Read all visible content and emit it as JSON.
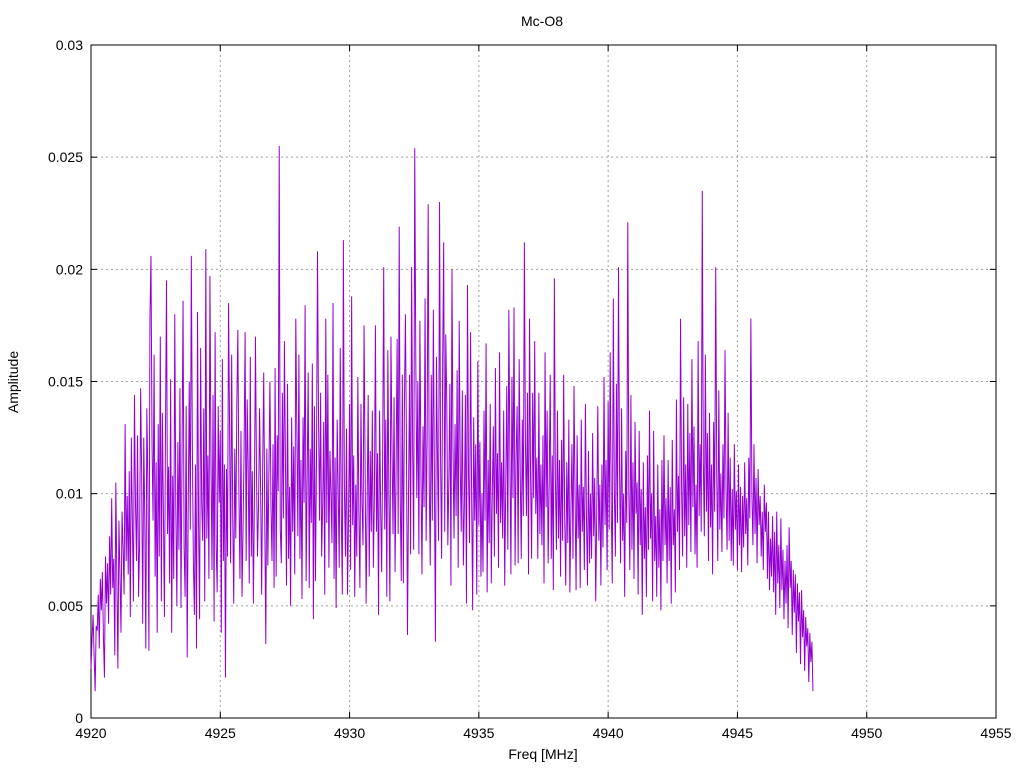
{
  "chart_data": {
    "type": "line",
    "title": "Mc-O8",
    "xlabel": "Freq [MHz]",
    "ylabel": "Amplitude",
    "xlim": [
      4920,
      4955
    ],
    "ylim": [
      0,
      0.03
    ],
    "x_ticks": [
      4920,
      4925,
      4930,
      4935,
      4940,
      4945,
      4950,
      4955
    ],
    "x_tick_labels": [
      "4920",
      "4925",
      "4930",
      "4935",
      "4940",
      "4945",
      "4950",
      "4955"
    ],
    "y_ticks": [
      0,
      0.005,
      0.01,
      0.015,
      0.02,
      0.025,
      0.03
    ],
    "y_tick_labels": [
      "0",
      "0.005",
      "0.01",
      "0.015",
      "0.02",
      "0.025",
      "0.03"
    ],
    "grid": true,
    "legend": "none",
    "series_color": "#9400d3",
    "x_start": 4920,
    "x_step": 0.04,
    "values": [
      0.0022,
      0.0035,
      0.0046,
      0.0028,
      0.0012,
      0.0041,
      0.0039,
      0.0055,
      0.0031,
      0.0062,
      0.0048,
      0.0065,
      0.0036,
      0.0018,
      0.0072,
      0.0051,
      0.0069,
      0.0042,
      0.0081,
      0.0055,
      0.0098,
      0.0058,
      0.0071,
      0.0028,
      0.0105,
      0.0062,
      0.0022,
      0.0088,
      0.0064,
      0.0038,
      0.0092,
      0.0076,
      0.0055,
      0.0131,
      0.007,
      0.0099,
      0.0064,
      0.011,
      0.0045,
      0.0125,
      0.0088,
      0.0052,
      0.0144,
      0.0096,
      0.007,
      0.0126,
      0.0054,
      0.0078,
      0.0147,
      0.0108,
      0.0042,
      0.0125,
      0.0089,
      0.0031,
      0.0138,
      0.0105,
      0.003,
      0.0178,
      0.0206,
      0.0122,
      0.0088,
      0.0162,
      0.0063,
      0.0114,
      0.0038,
      0.0131,
      0.0072,
      0.017,
      0.0052,
      0.0136,
      0.0091,
      0.0045,
      0.0127,
      0.0195,
      0.0082,
      0.0112,
      0.006,
      0.0151,
      0.0038,
      0.0108,
      0.0062,
      0.018,
      0.0094,
      0.005,
      0.0123,
      0.0075,
      0.0147,
      0.0049,
      0.0116,
      0.0186,
      0.0076,
      0.0054,
      0.0139,
      0.0027,
      0.0094,
      0.015,
      0.0084,
      0.0206,
      0.0121,
      0.0069,
      0.0046,
      0.0113,
      0.0031,
      0.0181,
      0.0087,
      0.0044,
      0.0165,
      0.0096,
      0.0079,
      0.0138,
      0.0052,
      0.0209,
      0.008,
      0.0117,
      0.0062,
      0.0197,
      0.0114,
      0.0066,
      0.0144,
      0.0043,
      0.0172,
      0.0077,
      0.0056,
      0.0139,
      0.0096,
      0.0128,
      0.0038,
      0.016,
      0.007,
      0.0113,
      0.0018,
      0.0111,
      0.0072,
      0.0185,
      0.0129,
      0.0069,
      0.0162,
      0.0091,
      0.0051,
      0.012,
      0.008,
      0.014,
      0.0173,
      0.0101,
      0.0062,
      0.0128,
      0.0054,
      0.0084,
      0.0119,
      0.0172,
      0.007,
      0.0142,
      0.0111,
      0.006,
      0.0161,
      0.0072,
      0.011,
      0.0051,
      0.0099,
      0.017,
      0.011,
      0.0072,
      0.0095,
      0.0138,
      0.0101,
      0.0055,
      0.0112,
      0.0154,
      0.0089,
      0.0033,
      0.012,
      0.0068,
      0.011,
      0.015,
      0.0094,
      0.007,
      0.0122,
      0.0058,
      0.0156,
      0.0063,
      0.0126,
      0.0101,
      0.0255,
      0.0084,
      0.0069,
      0.0145,
      0.0089,
      0.0168,
      0.0114,
      0.0059,
      0.0149,
      0.0071,
      0.0103,
      0.005,
      0.0134,
      0.0083,
      0.0121,
      0.0064,
      0.0178,
      0.013,
      0.0081,
      0.0162,
      0.0071,
      0.0115,
      0.0053,
      0.0134,
      0.0096,
      0.0184,
      0.0061,
      0.0108,
      0.0154,
      0.0058,
      0.012,
      0.0087,
      0.0158,
      0.0044,
      0.0139,
      0.0061,
      0.0114,
      0.0208,
      0.0133,
      0.0088,
      0.0145,
      0.0072,
      0.0095,
      0.0132,
      0.0055,
      0.0178,
      0.0087,
      0.0153,
      0.0067,
      0.0119,
      0.01,
      0.0078,
      0.0185,
      0.0062,
      0.0116,
      0.0049,
      0.0133,
      0.0101,
      0.0067,
      0.0165,
      0.0092,
      0.0055,
      0.0213,
      0.0102,
      0.0072,
      0.0129,
      0.0055,
      0.009,
      0.014,
      0.0066,
      0.0188,
      0.0086,
      0.0117,
      0.0054,
      0.0104,
      0.0072,
      0.0152,
      0.0091,
      0.0058,
      0.014,
      0.0096,
      0.0077,
      0.0175,
      0.0113,
      0.0051,
      0.0095,
      0.0144,
      0.0063,
      0.0119,
      0.0083,
      0.0137,
      0.0067,
      0.0099,
      0.0175,
      0.0083,
      0.0118,
      0.0046,
      0.0137,
      0.0095,
      0.0065,
      0.0118,
      0.0201,
      0.0084,
      0.0133,
      0.0054,
      0.0164,
      0.01,
      0.0052,
      0.017,
      0.0121,
      0.0082,
      0.0143,
      0.0065,
      0.0112,
      0.0169,
      0.0082,
      0.0219,
      0.0097,
      0.0061,
      0.0153,
      0.006,
      0.0139,
      0.018,
      0.0122,
      0.0037,
      0.01,
      0.0153,
      0.0073,
      0.0201,
      0.0119,
      0.0075,
      0.0254,
      0.0162,
      0.0098,
      0.015,
      0.0073,
      0.0177,
      0.011,
      0.0064,
      0.013,
      0.0094,
      0.0187,
      0.0079,
      0.0126,
      0.0229,
      0.0106,
      0.0068,
      0.0153,
      0.0088,
      0.0182,
      0.0108,
      0.0034,
      0.0161,
      0.0116,
      0.0079,
      0.023,
      0.0114,
      0.0071,
      0.0158,
      0.0212,
      0.0083,
      0.0171,
      0.014,
      0.0077,
      0.0106,
      0.0149,
      0.0059,
      0.02,
      0.0121,
      0.008,
      0.0131,
      0.009,
      0.0155,
      0.0067,
      0.0177,
      0.0112,
      0.0083,
      0.0146,
      0.0068,
      0.0095,
      0.0144,
      0.0051,
      0.0193,
      0.0109,
      0.0078,
      0.0172,
      0.01,
      0.0048,
      0.0134,
      0.0088,
      0.0122,
      0.0055,
      0.0159,
      0.0086,
      0.0123,
      0.0063,
      0.01,
      0.0065,
      0.0137,
      0.0088,
      0.0167,
      0.0056,
      0.0115,
      0.0078,
      0.014,
      0.006,
      0.0101,
      0.013,
      0.0072,
      0.0156,
      0.0091,
      0.0118,
      0.0067,
      0.0163,
      0.0087,
      0.0114,
      0.008,
      0.0137,
      0.0059,
      0.0104,
      0.0148,
      0.0075,
      0.0182,
      0.0116,
      0.0064,
      0.0152,
      0.0098,
      0.0183,
      0.0068,
      0.0116,
      0.0139,
      0.0069,
      0.016,
      0.0109,
      0.0071,
      0.0133,
      0.009,
      0.0212,
      0.0124,
      0.009,
      0.0145,
      0.0064,
      0.0178,
      0.0108,
      0.0071,
      0.0145,
      0.0098,
      0.0168,
      0.0091,
      0.0116,
      0.0071,
      0.0145,
      0.0082,
      0.0113,
      0.0077,
      0.0126,
      0.006,
      0.0163,
      0.0094,
      0.0137,
      0.0069,
      0.0105,
      0.0153,
      0.0071,
      0.0117,
      0.0057,
      0.0196,
      0.0106,
      0.0075,
      0.0137,
      0.008,
      0.0115,
      0.0063,
      0.0124,
      0.0079,
      0.0153,
      0.0089,
      0.0059,
      0.0114,
      0.0078,
      0.0133,
      0.0056,
      0.0092,
      0.0122,
      0.0071,
      0.0148,
      0.01,
      0.0057,
      0.0126,
      0.008,
      0.0104,
      0.0058,
      0.0133,
      0.0083,
      0.0103,
      0.0066,
      0.014,
      0.0091,
      0.0059,
      0.0119,
      0.0069,
      0.01,
      0.0071,
      0.0127,
      0.0081,
      0.0107,
      0.0052,
      0.0093,
      0.0139,
      0.0079,
      0.0104,
      0.0059,
      0.0113,
      0.0076,
      0.0152,
      0.0086,
      0.0115,
      0.0066,
      0.0141,
      0.0084,
      0.0163,
      0.0093,
      0.006,
      0.0187,
      0.0101,
      0.0072,
      0.0149,
      0.0087,
      0.0201,
      0.0112,
      0.0069,
      0.0138,
      0.0079,
      0.01,
      0.0054,
      0.0119,
      0.0087,
      0.0221,
      0.0101,
      0.0066,
      0.0144,
      0.0075,
      0.0114,
      0.0062,
      0.0132,
      0.0091,
      0.0105,
      0.0055,
      0.0128,
      0.0077,
      0.0102,
      0.0046,
      0.0114,
      0.0071,
      0.0094,
      0.0054,
      0.0117,
      0.0075,
      0.0137,
      0.008,
      0.01,
      0.0052,
      0.0128,
      0.007,
      0.009,
      0.0054,
      0.0113,
      0.0067,
      0.0093,
      0.0048,
      0.0115,
      0.007,
      0.0126,
      0.0077,
      0.0098,
      0.006,
      0.0115,
      0.007,
      0.0103,
      0.0051,
      0.0124,
      0.0077,
      0.0093,
      0.0056,
      0.0142,
      0.0083,
      0.0108,
      0.0066,
      0.0178,
      0.0103,
      0.0072,
      0.0143,
      0.0081,
      0.0113,
      0.0067,
      0.014,
      0.0086,
      0.0127,
      0.0074,
      0.016,
      0.0094,
      0.013,
      0.0073,
      0.0104,
      0.0067,
      0.0168,
      0.009,
      0.0122,
      0.0083,
      0.0235,
      0.0115,
      0.0081,
      0.0162,
      0.0092,
      0.0127,
      0.007,
      0.0136,
      0.0085,
      0.0113,
      0.0064,
      0.0132,
      0.0092,
      0.0201,
      0.0109,
      0.007,
      0.0146,
      0.0084,
      0.0109,
      0.0074,
      0.0122,
      0.0089,
      0.0164,
      0.0101,
      0.0075,
      0.0136,
      0.0079,
      0.0116,
      0.007,
      0.0102,
      0.0068,
      0.0122,
      0.0084,
      0.0101,
      0.0066,
      0.0113,
      0.0077,
      0.0103,
      0.0065,
      0.0099,
      0.0076,
      0.0114,
      0.0082,
      0.0098,
      0.0068,
      0.0116,
      0.0089,
      0.0178,
      0.01,
      0.0077,
      0.0122,
      0.0082,
      0.0107,
      0.0069,
      0.0111,
      0.0086,
      0.0099,
      0.0072,
      0.0092,
      0.0066,
      0.0104,
      0.0083,
      0.0096,
      0.0062,
      0.0092,
      0.0057,
      0.008,
      0.0063,
      0.009,
      0.0056,
      0.0083,
      0.0046,
      0.0092,
      0.006,
      0.0077,
      0.0049,
      0.0089,
      0.0057,
      0.0075,
      0.0044,
      0.007,
      0.0051,
      0.0077,
      0.004,
      0.0085,
      0.0058,
      0.007,
      0.0037,
      0.0066,
      0.0047,
      0.0064,
      0.0029,
      0.006,
      0.0043,
      0.0056,
      0.0024,
      0.0057,
      0.0036,
      0.0048,
      0.0021,
      0.0045,
      0.0032,
      0.004,
      0.0016,
      0.0038,
      0.0025,
      0.0034,
      0.0012
    ]
  }
}
